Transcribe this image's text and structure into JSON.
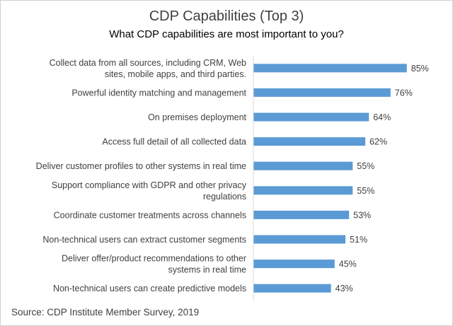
{
  "chart_data": {
    "type": "bar",
    "orientation": "horizontal",
    "title": "CDP Capabilities (Top 3)",
    "subtitle": "What CDP capabilities are most important to you?",
    "categories": [
      [
        "Collect data from all sources, including CRM, Web",
        "sites, mobile apps, and third parties."
      ],
      [
        "Powerful identity matching and management"
      ],
      [
        "On premises deployment"
      ],
      [
        "Access full detail of all collected data"
      ],
      [
        "Deliver customer profiles to other systems in real time"
      ],
      [
        "Support compliance with GDPR and other privacy",
        "regulations"
      ],
      [
        "Coordinate customer treatments across channels"
      ],
      [
        "Non-technical users can extract customer segments"
      ],
      [
        "Deliver offer/product recommendations to other",
        "systems in real time"
      ],
      [
        "Non-technical users can create predictive models"
      ]
    ],
    "values": [
      85,
      76,
      64,
      62,
      55,
      55,
      53,
      51,
      45,
      43
    ],
    "value_labels": [
      "85%",
      "76%",
      "64%",
      "62%",
      "55%",
      "55%",
      "53%",
      "51%",
      "45%",
      "43%"
    ],
    "xlim": [
      0,
      100
    ],
    "bar_color": "#5b9bd5",
    "grid": false,
    "legend": "none"
  },
  "source": "Source: CDP Institute Member Survey, 2019"
}
